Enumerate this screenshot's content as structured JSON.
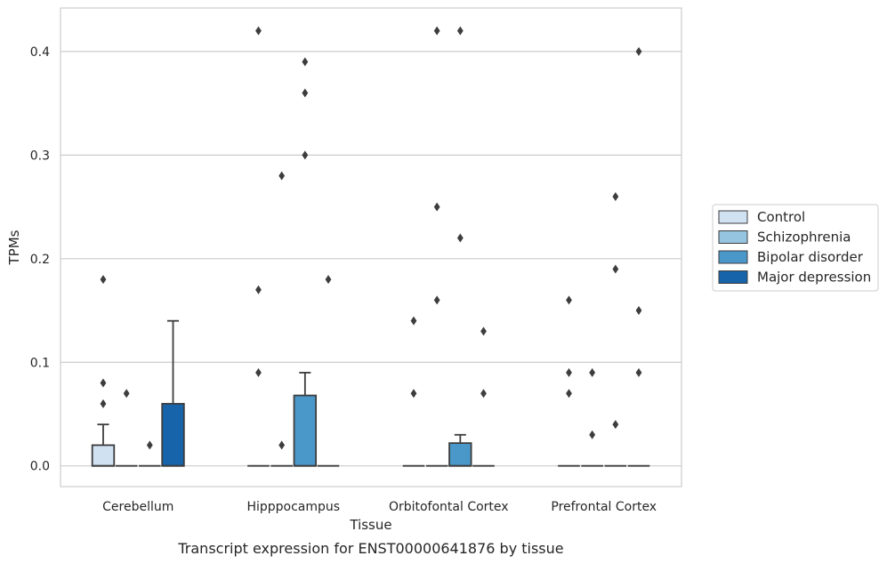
{
  "chart_data": {
    "type": "box",
    "title": "",
    "caption": "Transcript expression for ENST00000641876 by tissue",
    "xlabel": "Tissue",
    "ylabel": "TPMs",
    "ylim": [
      -0.02,
      0.442
    ],
    "yticks": [
      0.0,
      0.1,
      0.2,
      0.3,
      0.4
    ],
    "ytick_labels": [
      "0.0",
      "0.1",
      "0.2",
      "0.3",
      "0.4"
    ],
    "grid": "horizontal",
    "legend_position": "right",
    "categories": [
      "Cerebellum",
      "Hipppocampus",
      "Orbitofontal Cortex",
      "Prefrontal Cortex"
    ],
    "series": [
      {
        "name": "Control",
        "color": "#d0e1f2",
        "boxes": [
          {
            "q1": 0.0,
            "median": 0.0,
            "q3": 0.02,
            "whisker_low": 0.0,
            "whisker_high": 0.04,
            "outliers": [
              0.06,
              0.08,
              0.18
            ]
          },
          {
            "q1": 0.0,
            "median": 0.0,
            "q3": 0.0,
            "whisker_low": 0.0,
            "whisker_high": 0.0,
            "outliers": [
              0.09,
              0.17,
              0.42
            ]
          },
          {
            "q1": 0.0,
            "median": 0.0,
            "q3": 0.0,
            "whisker_low": 0.0,
            "whisker_high": 0.0,
            "outliers": [
              0.07,
              0.14
            ]
          },
          {
            "q1": 0.0,
            "median": 0.0,
            "q3": 0.0,
            "whisker_low": 0.0,
            "whisker_high": 0.0,
            "outliers": [
              0.07,
              0.09,
              0.16
            ]
          }
        ]
      },
      {
        "name": "Schizophrenia",
        "color": "#94c4df",
        "boxes": [
          {
            "q1": 0.0,
            "median": 0.0,
            "q3": 0.0,
            "whisker_low": 0.0,
            "whisker_high": 0.0,
            "outliers": [
              0.07
            ]
          },
          {
            "q1": 0.0,
            "median": 0.0,
            "q3": 0.0,
            "whisker_low": 0.0,
            "whisker_high": 0.0,
            "outliers": [
              0.02,
              0.28
            ]
          },
          {
            "q1": 0.0,
            "median": 0.0,
            "q3": 0.0,
            "whisker_low": 0.0,
            "whisker_high": 0.0,
            "outliers": [
              0.16,
              0.25,
              0.42
            ]
          },
          {
            "q1": 0.0,
            "median": 0.0,
            "q3": 0.0,
            "whisker_low": 0.0,
            "whisker_high": 0.0,
            "outliers": [
              0.03,
              0.09
            ]
          }
        ]
      },
      {
        "name": "Bipolar disorder",
        "color": "#4a98c9",
        "boxes": [
          {
            "q1": 0.0,
            "median": 0.0,
            "q3": 0.0,
            "whisker_low": 0.0,
            "whisker_high": 0.0,
            "outliers": [
              0.02
            ]
          },
          {
            "q1": 0.0,
            "median": 0.0,
            "q3": 0.068,
            "whisker_low": 0.0,
            "whisker_high": 0.09,
            "outliers": [
              0.3,
              0.36,
              0.39
            ]
          },
          {
            "q1": 0.0,
            "median": 0.0,
            "q3": 0.022,
            "whisker_low": 0.0,
            "whisker_high": 0.03,
            "outliers": [
              0.22,
              0.42
            ]
          },
          {
            "q1": 0.0,
            "median": 0.0,
            "q3": 0.0,
            "whisker_low": 0.0,
            "whisker_high": 0.0,
            "outliers": [
              0.04,
              0.19,
              0.26
            ]
          }
        ]
      },
      {
        "name": "Major depression",
        "color": "#1764ab",
        "boxes": [
          {
            "q1": 0.0,
            "median": 0.0,
            "q3": 0.06,
            "whisker_low": 0.0,
            "whisker_high": 0.14,
            "outliers": []
          },
          {
            "q1": 0.0,
            "median": 0.0,
            "q3": 0.0,
            "whisker_low": 0.0,
            "whisker_high": 0.0,
            "outliers": [
              0.18
            ]
          },
          {
            "q1": 0.0,
            "median": 0.0,
            "q3": 0.0,
            "whisker_low": 0.0,
            "whisker_high": 0.0,
            "outliers": [
              0.07,
              0.13
            ]
          },
          {
            "q1": 0.0,
            "median": 0.0,
            "q3": 0.0,
            "whisker_low": 0.0,
            "whisker_high": 0.0,
            "outliers": [
              0.09,
              0.15,
              0.4
            ]
          }
        ]
      }
    ]
  }
}
